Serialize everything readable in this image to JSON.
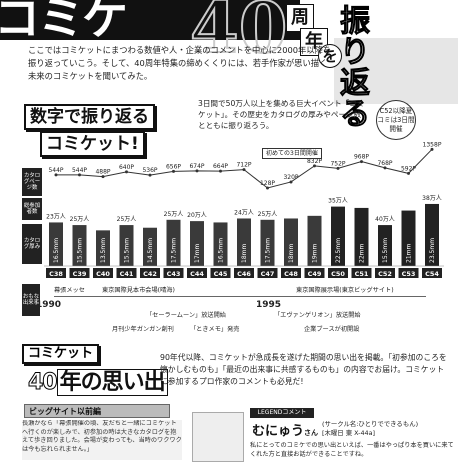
{
  "header": {
    "title": "コミケ",
    "big_number": "40",
    "chars": [
      "周",
      "年"
    ],
    "particle": "を",
    "subtitle": "振り返る"
  },
  "intro": "ここではコミケットにまつわる数値や人・企業のコメントを中心に2000年以降を振り返っていこう。そして、40周年特集の締めくくりには、若手作家が思い描く未来のコミケットを聞いてみた。",
  "section": {
    "title_line1": "数字で振り返る",
    "title_line2": "コミケット!",
    "description": "3日間で50万人以上を集める巨大イベント「コミケット」。その歴史をカタログの厚みやページ数とともに振り返ろう。"
  },
  "callouts": {
    "c52": "C52以降夏コミは3日間開催",
    "three_day": "初めての3日間開催"
  },
  "row_labels": {
    "pages": "カタログページ数",
    "attendance": "総参加者数",
    "thickness": "カタログ厚み"
  },
  "events_label": "おもな出来事",
  "chart_data": {
    "type": "bar",
    "categories": [
      "C38",
      "C39",
      "C40",
      "C41",
      "C42",
      "C43",
      "C44",
      "C45",
      "C46",
      "C47",
      "C48",
      "C49",
      "C50",
      "C51",
      "C52",
      "C53",
      "C54"
    ],
    "page_labels": [
      "544P",
      "544P",
      "488P",
      "640P",
      "536P",
      "656P",
      "674P",
      "664P",
      "712P",
      "128P",
      "320P",
      "832P",
      "752P",
      "968P",
      "768P",
      "592P",
      "1358P"
    ],
    "attendance_labels": [
      "23万人",
      "25万人",
      "",
      "25万人",
      "",
      "25万人",
      "20万人",
      "",
      "24万人",
      "25万人",
      "",
      "",
      "35万人",
      "",
      "40万人",
      "",
      "38万人"
    ],
    "thickness_labels": [
      "16.5mm",
      "15.5mm",
      "13.5mm",
      "15.5mm",
      "14.5mm",
      "17.5mm",
      "17mm",
      "16.5mm",
      "18mm",
      "17.5mm",
      "18mm",
      "19mm",
      "22.5mm",
      "22mm",
      "15.5mm",
      "21mm",
      "23.5mm"
    ],
    "thickness_values": [
      16.5,
      15.5,
      13.5,
      15.5,
      14.5,
      17.5,
      17,
      16.5,
      18,
      17.5,
      18,
      19,
      22.5,
      22,
      15.5,
      21,
      23.5
    ]
  },
  "venues": {
    "label": "開催場所",
    "makuhari": "幕張メッセ",
    "harumi": "東京国際見本市会場(晴海)",
    "bigsight": "東京国際展示場(東京ビッグサイト)"
  },
  "years": {
    "y1990": "1990",
    "y1995": "1995"
  },
  "events": {
    "sailor_moon": "「セーラームーン」放送開始",
    "eva": "「エヴァンゲリオン」放送開始",
    "gangan": "月刊少年ガンガン創刊",
    "tokimeki": "「ときメモ」発売",
    "corporate": "企業ブースが初開設"
  },
  "memories": {
    "title_top": "コミケット",
    "number": "40",
    "title_rest": "年の思い出",
    "description": "90年代以降、コミケットが急成長を遂げた期間の思い出を掲載。「初参加のころを懐かしむものも」「最近の出来事に共感するものも」の内容でお届け。コミケットに参加するプロ作家のコメントも必見だ!"
  },
  "bigsight_section": {
    "title": "ビッグサイト以前編",
    "text": "長瀬かなら「幕張開催の頃、友だちと一緒にコミケットへ行くのが楽しみで、初参加の時は大きなカタログを抱えて歩き回りました。会場が変わっても、当時のワクワクは今も忘れられません。」"
  },
  "legend": {
    "tag": "LEGENDコメント",
    "name": "むにゅう",
    "suffix": "さん",
    "info1": "(サークル名:ひとりでできるもん)",
    "info2": "[木曜日 東 X-44a]",
    "text": "私にとってのコミケでの思い出といえば、一番はやっぱり本を買いに来てくれた方と直接お話ができることですね。"
  }
}
